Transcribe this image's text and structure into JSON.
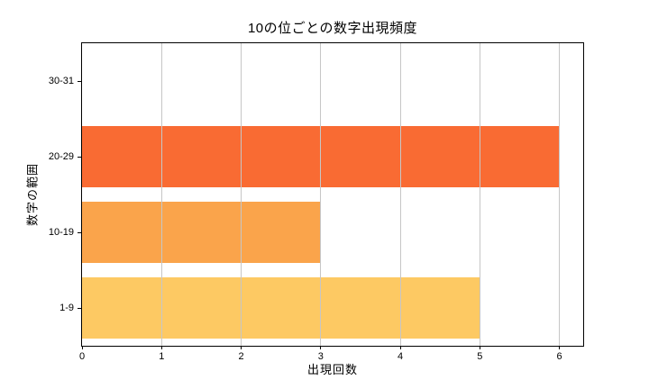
{
  "chart_data": {
    "type": "bar",
    "orientation": "horizontal",
    "title": "10の位ごとの数字出現頻度",
    "xlabel": "出現回数",
    "ylabel": "数字の範囲",
    "categories_top_to_bottom": [
      "30-31",
      "20-29",
      "10-19",
      "1-9"
    ],
    "values_top_to_bottom": [
      0,
      6,
      3,
      5
    ],
    "bar_colors_top_to_bottom": [
      null,
      "#F96B33",
      "#FAA44B",
      "#FDC963"
    ],
    "xlim": [
      0,
      6.3
    ],
    "xticks": [
      0,
      1,
      2,
      3,
      4,
      5,
      6
    ],
    "bar_thickness_fraction": 0.8,
    "grid": "vertical",
    "grid_over_bars": true,
    "grid_color": "#C6C6C6",
    "spine_color": "#000000",
    "background": "#FFFFFF",
    "legend": "none"
  }
}
